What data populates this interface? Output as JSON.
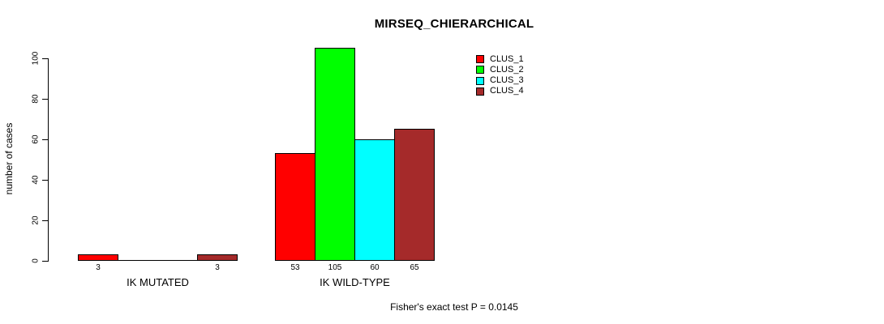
{
  "chart_data": {
    "type": "bar",
    "title": "MIRSEQ_CHIERARCHICAL",
    "ylabel": "number of cases",
    "xlabel": "",
    "groups": [
      "IK MUTATED",
      "IK WILD-TYPE"
    ],
    "series": [
      {
        "name": "CLUS_1",
        "color": "#ff0000",
        "values": [
          3,
          53
        ]
      },
      {
        "name": "CLUS_2",
        "color": "#00ff00",
        "values": [
          0,
          105
        ]
      },
      {
        "name": "CLUS_3",
        "color": "#00ffff",
        "values": [
          0,
          60
        ]
      },
      {
        "name": "CLUS_4",
        "color": "#a52a2a",
        "values": [
          3,
          65
        ]
      }
    ],
    "bar_value_labels": [
      [
        "3",
        "",
        "",
        "3"
      ],
      [
        "53",
        "105",
        "60",
        "65"
      ]
    ],
    "ylim": [
      0,
      100
    ],
    "yticks": [
      0,
      20,
      40,
      60,
      80,
      100
    ],
    "grid": false,
    "legend_position": "top-right",
    "legend_entries": [
      "CLUS_1",
      "CLUS_2",
      "CLUS_3",
      "CLUS_4"
    ],
    "bar_border_color": "#000000",
    "footer": "Fisher's exact test P = 0.0145"
  }
}
